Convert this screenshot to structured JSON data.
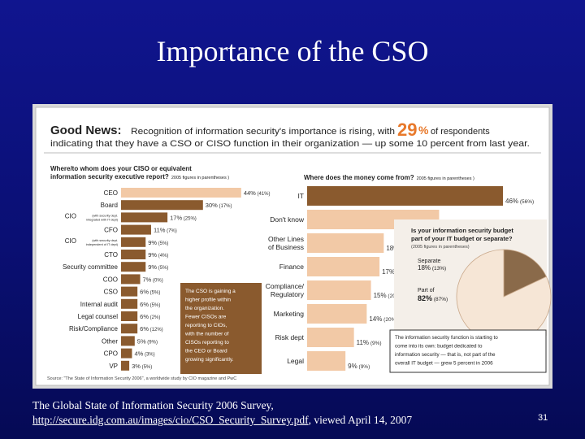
{
  "slide": {
    "title": "Importance of the CSO",
    "caption_line1": "The Global State of Information Security 2006 Survey,",
    "caption_url": "http://secure.idg.com.au/images/cio/CSO_Security_Survey.pdf",
    "caption_suffix": ", viewed April 14, 2007",
    "page_number": "31"
  },
  "panel": {
    "heading_bold": "Good News:",
    "heading_text1": "Recognition of information security's importance is rising, with",
    "heading_pct": "29",
    "heading_pct_sign": "%",
    "heading_text2": "of respondents",
    "heading_line2": "indicating that they have a CSO or CISO function in their organization — up some 10 percent from last year.",
    "source": "Source: \"The State of Information Security 2006\", a worldwide study by CIO magazine and PwC",
    "left_note": [
      "The CSO is gaining a",
      "higher profile within",
      "the organization.",
      "Fewer CISOs are",
      "reporting to CIOs,",
      "with the number of",
      "CISOs reporting to",
      "the CEO or Board",
      "growing significantly."
    ],
    "pie_note": [
      "The information security function is starting to",
      "come into its own: budget dedicated to",
      "information security — that is, not part of the",
      "overall IT budget — grew 5 percent in 2006"
    ]
  },
  "colors": {
    "accent": "#e8792b",
    "bar_highlight": "#f2c9a6",
    "bar": "#8a5a2e",
    "pie_small": "#8a6a4a",
    "pie_large": "#f6e6d6"
  },
  "chart_data": [
    {
      "type": "bar",
      "orientation": "horizontal",
      "title": "Where/to whom does your CISO or equivalent information security executive report?",
      "subtitle": "2005 figures in parentheses",
      "categories": [
        "CEO",
        "Board",
        "CIO (with security dept. integrated with IT dept)",
        "CFO",
        "CIO (with security dept. independent of IT dept)",
        "CTO",
        "Security committee",
        "COO",
        "CSO",
        "Internal audit",
        "Legal counsel",
        "Risk/Compliance",
        "Other",
        "CPO",
        "VP"
      ],
      "category_main": [
        "CEO",
        "Board",
        "CIO",
        "CFO",
        "CIO",
        "CTO",
        "Security committee",
        "COO",
        "CSO",
        "Internal audit",
        "Legal counsel",
        "Risk/Compliance",
        "Other",
        "CPO",
        "VP"
      ],
      "category_sub": [
        "",
        "",
        "(with security dept. integrated with IT dept)",
        "",
        "(with security dept. independent of IT dept)",
        "",
        "",
        "",
        "",
        "",
        "",
        "",
        "",
        "",
        ""
      ],
      "values": [
        44,
        30,
        17,
        11,
        9,
        9,
        9,
        7,
        6,
        6,
        6,
        6,
        5,
        4,
        3
      ],
      "labels": [
        "44% (41%)",
        "30% (17%)",
        "17% (25%)",
        "11% (7%)",
        "9% (5%)",
        "9% (4%)",
        "9% (5%)",
        "7% (0%)",
        "6% (5%)",
        "6% (5%)",
        "6% (2%)",
        "6% (12%)",
        "5% (9%)",
        "4% (3%)",
        "3% (5%)"
      ],
      "xlim": [
        0,
        50
      ]
    },
    {
      "type": "bar",
      "orientation": "horizontal",
      "title": "Where does the money come from?",
      "subtitle": "2005 figures in parentheses",
      "categories": [
        "IT",
        "Don't know",
        "Other Lines of Business",
        "Finance",
        "Compliance/ Regulatory",
        "Marketing",
        "Risk dept",
        "Legal"
      ],
      "category_lines": [
        [
          "IT"
        ],
        [
          "Don't know"
        ],
        [
          "Other Lines",
          "of Business"
        ],
        [
          "Finance"
        ],
        [
          "Compliance/",
          "Regulatory"
        ],
        [
          "Marketing"
        ],
        [
          "Risk dept"
        ],
        [
          "Legal"
        ]
      ],
      "values": [
        46,
        31,
        18,
        17,
        15,
        14,
        11,
        9
      ],
      "labels": [
        "46% (56%)",
        "31% (24%)",
        "18% (20%)",
        "17% (19%)",
        "15% (20%)",
        "14% (20%)",
        "11% (9%)",
        "9% (9%)"
      ],
      "xlim": [
        0,
        50
      ]
    },
    {
      "type": "pie",
      "title": "Is your information security budget part of your IT budget or separate?",
      "subtitle": "2005 figures in parentheses",
      "slices": [
        {
          "name": "Separate",
          "value": 18,
          "label": "18% (13%)"
        },
        {
          "name": "Part of",
          "value": 82,
          "label": "82% (87%)"
        }
      ]
    }
  ]
}
